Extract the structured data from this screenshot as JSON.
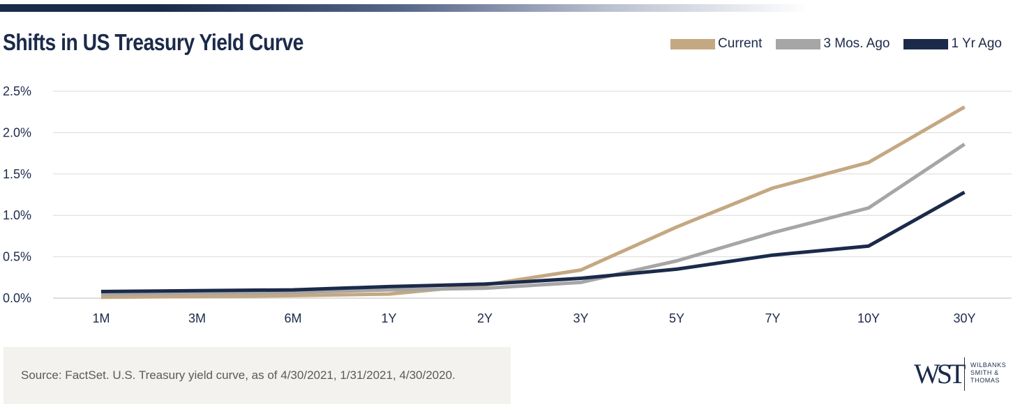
{
  "header": {
    "title": "Shifts in US Treasury Yield Curve"
  },
  "chart_data": {
    "type": "line",
    "title": "Shifts in US Treasury Yield Curve",
    "xlabel": "",
    "ylabel": "",
    "x": [
      "1M",
      "3M",
      "6M",
      "1Y",
      "2Y",
      "3Y",
      "5Y",
      "7Y",
      "10Y",
      "30Y"
    ],
    "yticks": [
      "0.0%",
      "0.5%",
      "1.0%",
      "1.5%",
      "2.0%",
      "2.5%"
    ],
    "ylim": [
      0,
      2.5
    ],
    "grid": true,
    "legend_position": "top-right",
    "series": [
      {
        "name": "Current",
        "color": "#c4a882",
        "values": [
          0.01,
          0.02,
          0.03,
          0.05,
          0.16,
          0.34,
          0.86,
          1.33,
          1.64,
          2.31
        ]
      },
      {
        "name": "3 Mos. Ago",
        "color": "#a6a6a6",
        "values": [
          0.05,
          0.06,
          0.07,
          0.1,
          0.12,
          0.19,
          0.45,
          0.79,
          1.09,
          1.86
        ]
      },
      {
        "name": "1 Yr Ago",
        "color": "#1b2a4a",
        "values": [
          0.08,
          0.09,
          0.1,
          0.14,
          0.17,
          0.24,
          0.35,
          0.52,
          0.63,
          1.28
        ]
      }
    ]
  },
  "footer": {
    "source": "Source: FactSet. U.S. Treasury yield curve, as of 4/30/2021, 1/31/2021, 4/30/2020."
  },
  "logo": {
    "mark": "WST",
    "line1": "WILBANKS",
    "line2": "SMITH &",
    "line3": "THOMAS"
  }
}
